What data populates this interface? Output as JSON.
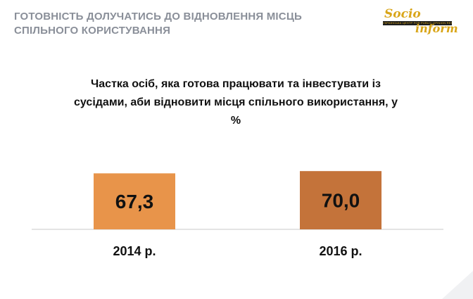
{
  "header": {
    "title": "ГОТОВНІСТЬ ДОЛУЧАТИСЬ ДО ВІДНОВЛЕННЯ МІСЦЬ СПІЛЬНОГО КОРИСТУВАННЯ"
  },
  "logo": {
    "text_top": "Socio",
    "text_bottom": "inform",
    "tagline": "УКРАЇНСЬКА ЦЕНТР FOR PUBLIC OPINION RESEARCH"
  },
  "colors": {
    "bar_2014": "#e8944a",
    "bar_2016": "#c4733a",
    "header_text": "#8a8f99",
    "logo_gold": "#d9a61a"
  },
  "chart_data": {
    "type": "bar",
    "title": "Частка осіб, яка готова працювати та інвестувати із сусідами, аби відновити місця спільного використання, у %",
    "categories": [
      "2014 р.",
      "2016 р."
    ],
    "values": [
      67.3,
      70.0
    ],
    "value_labels": [
      "67,3",
      "70,0"
    ],
    "xlabel": "",
    "ylabel": "",
    "grid": false,
    "legend": "none"
  }
}
